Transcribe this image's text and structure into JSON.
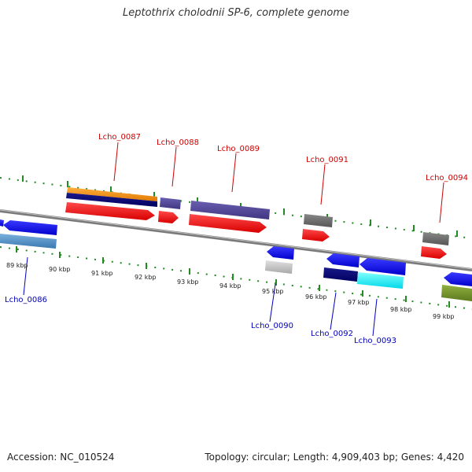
{
  "title": "Leptothrix cholodnii SP-6, complete genome",
  "footer": {
    "accession": "Accession: NC_010524",
    "summary": "Topology: circular; Length: 4,909,403 bp; Genes: 4,420"
  },
  "colors": {
    "forward_label": "#cc0000",
    "reverse_label": "#0000bb",
    "tick": "#228b22",
    "backbone": "#888888"
  },
  "ticks": [
    {
      "label": "89 kbp"
    },
    {
      "label": "90 kbp"
    },
    {
      "label": "91 kbp"
    },
    {
      "label": "92 kbp"
    },
    {
      "label": "93 kbp"
    },
    {
      "label": "94 kbp"
    },
    {
      "label": "95 kbp"
    },
    {
      "label": "96 kbp"
    },
    {
      "label": "97 kbp"
    },
    {
      "label": "98 kbp"
    },
    {
      "label": "99 kbp"
    }
  ],
  "gene_labels": {
    "forward": [
      "Lcho_0087",
      "Lcho_0088",
      "Lcho_0089",
      "Lcho_0091",
      "Lcho_0094"
    ],
    "reverse": [
      "Lcho_0086",
      "Lcho_0090",
      "Lcho_0092",
      "Lcho_0093"
    ]
  }
}
